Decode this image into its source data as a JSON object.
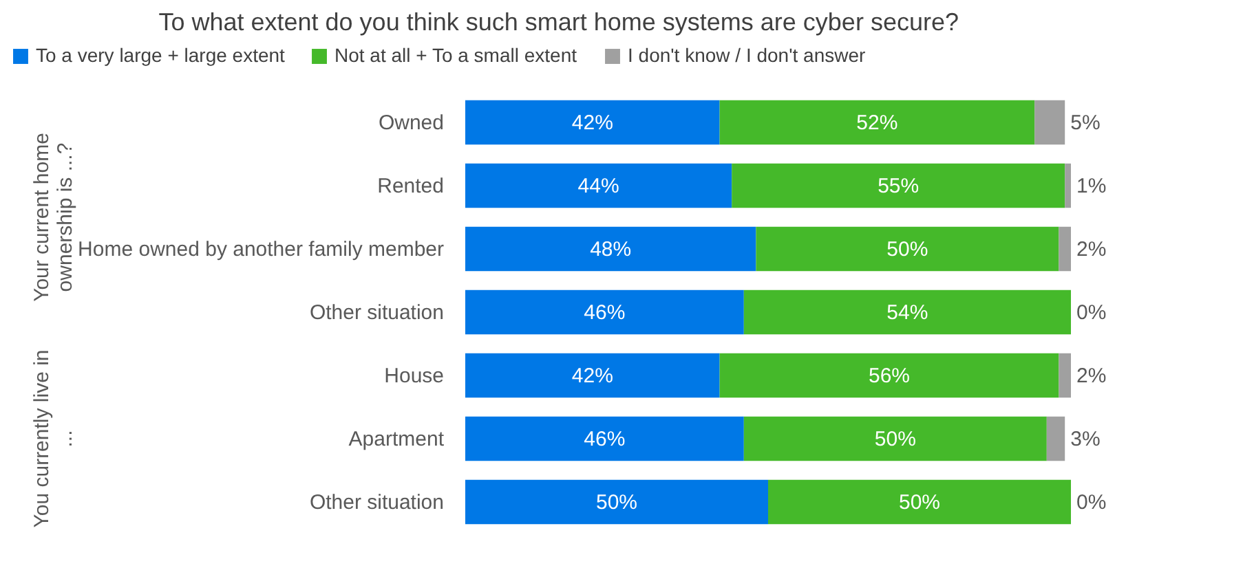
{
  "chart_data": {
    "type": "bar",
    "orientation": "horizontal",
    "stacked": true,
    "legend": "top",
    "title": "To what extent do you think such smart home systems are cyber secure?",
    "categories": [
      "Owned",
      "Rented",
      "Home owned by another family member",
      "Other situation",
      "House",
      "Apartment",
      "Other situation"
    ],
    "series": [
      {
        "name": "To a very large + large extent",
        "color": "#0078e6",
        "values": [
          42,
          44,
          48,
          46,
          42,
          46,
          50
        ],
        "value_labels": [
          "42%",
          "44%",
          "48%",
          "46%",
          "42%",
          "46%",
          "50%"
        ]
      },
      {
        "name": "Not at all + To a small extent",
        "color": "#45b92a",
        "values": [
          52,
          55,
          50,
          54,
          56,
          50,
          50
        ],
        "value_labels": [
          "52%",
          "55%",
          "50%",
          "54%",
          "56%",
          "50%",
          "50%"
        ]
      },
      {
        "name": "I don't know / I don't answer",
        "color": "#a0a0a0",
        "values": [
          5,
          1,
          2,
          0,
          2,
          3,
          0
        ],
        "value_labels": [
          "5%",
          "1%",
          "2%",
          "0%",
          "2%",
          "3%",
          "0%"
        ]
      }
    ],
    "annotations": [
      "Your current home ownership is ...?",
      "You currently live in ..."
    ]
  }
}
